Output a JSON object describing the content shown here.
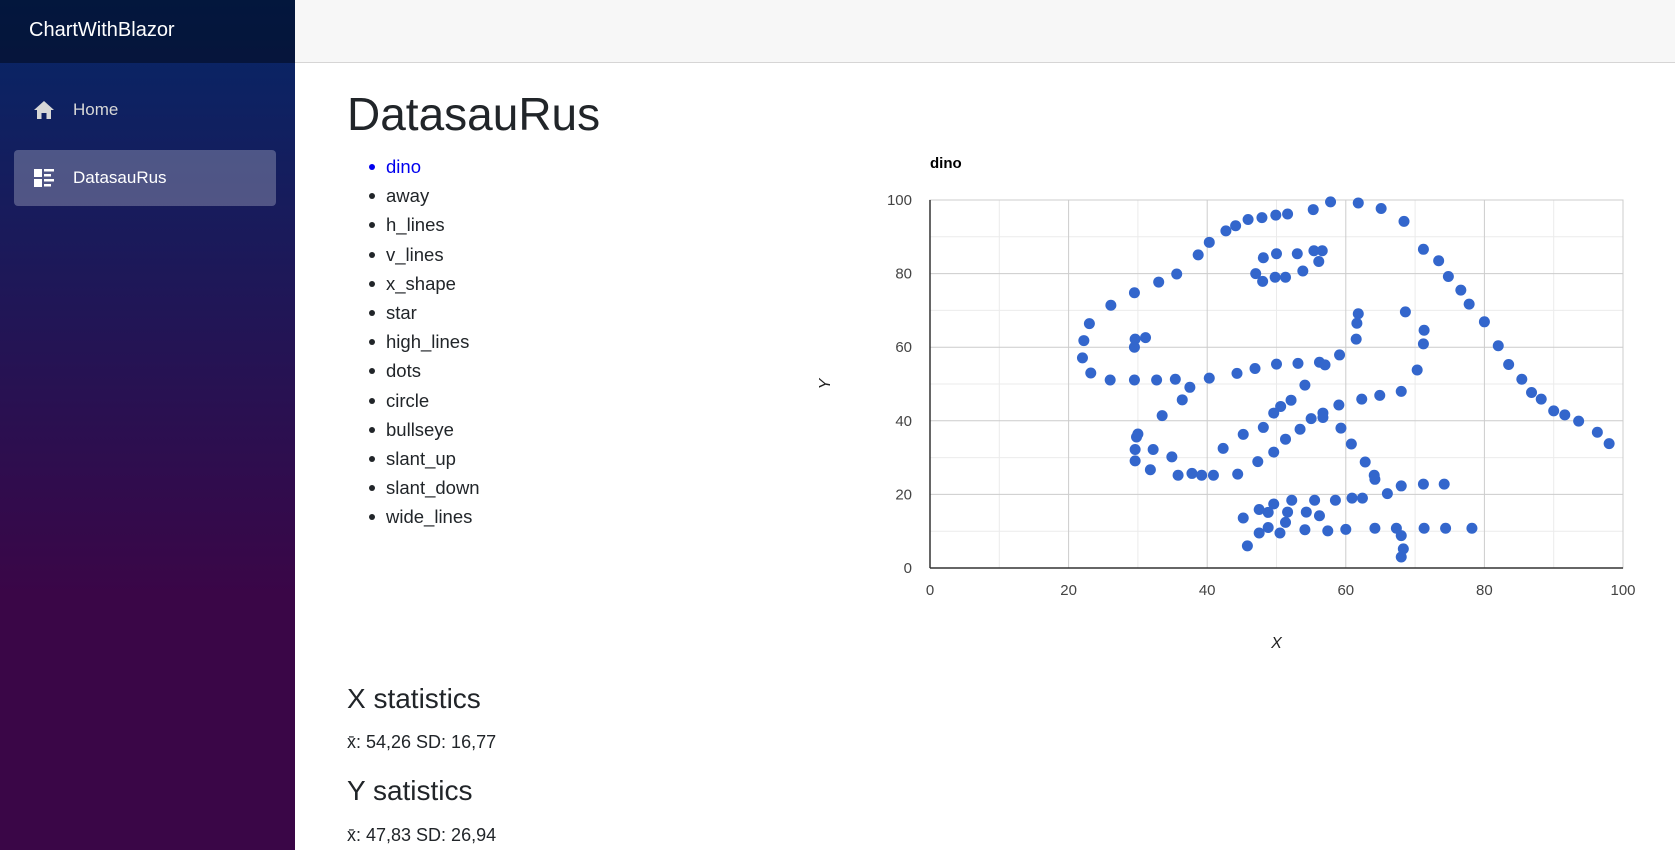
{
  "app": {
    "title": "ChartWithBlazor"
  },
  "nav": [
    {
      "label": "Home",
      "icon": "home-icon",
      "active": false
    },
    {
      "label": "DatasauRus",
      "icon": "list-rich-icon",
      "active": true
    }
  ],
  "page": {
    "title": "DatasauRus"
  },
  "datasets": [
    "dino",
    "away",
    "h_lines",
    "v_lines",
    "x_shape",
    "star",
    "high_lines",
    "dots",
    "circle",
    "bullseye",
    "slant_up",
    "slant_down",
    "wide_lines"
  ],
  "selected_dataset": "dino",
  "x_stats": {
    "heading": "X statistics",
    "text": "x̄: 54,26 SD: 16,77"
  },
  "y_stats": {
    "heading": "Y satistics",
    "text": "x̄: 47,83 SD: 26,94"
  },
  "colors": {
    "point": "#3366cc",
    "selected_link": "#0000ee"
  },
  "chart_data": {
    "type": "scatter",
    "title": "dino",
    "xlabel": "X",
    "ylabel": "Y",
    "xlim": [
      0,
      100
    ],
    "ylim": [
      0,
      100
    ],
    "xticks": [
      0,
      20,
      40,
      60,
      80,
      100
    ],
    "yticks": [
      0,
      20,
      40,
      60,
      80,
      100
    ],
    "grid": true,
    "points": [
      [
        57.8,
        99.5
      ],
      [
        61.8,
        99.2
      ],
      [
        65.1,
        97.7
      ],
      [
        55.3,
        97.4
      ],
      [
        68.4,
        94.2
      ],
      [
        51.6,
        96.2
      ],
      [
        49.9,
        95.9
      ],
      [
        47.9,
        95.2
      ],
      [
        45.9,
        94.7
      ],
      [
        44.1,
        93.0
      ],
      [
        42.7,
        91.6
      ],
      [
        40.3,
        88.5
      ],
      [
        38.7,
        85.1
      ],
      [
        33.0,
        77.7
      ],
      [
        35.6,
        79.9
      ],
      [
        29.5,
        74.8
      ],
      [
        26.1,
        71.4
      ],
      [
        23.0,
        66.4
      ],
      [
        22.2,
        61.8
      ],
      [
        22.0,
        57.1
      ],
      [
        23.2,
        53.0
      ],
      [
        26.0,
        51.1
      ],
      [
        29.5,
        51.1
      ],
      [
        32.7,
        51.1
      ],
      [
        35.4,
        51.3
      ],
      [
        40.3,
        51.6
      ],
      [
        44.3,
        52.9
      ],
      [
        46.9,
        54.2
      ],
      [
        50.0,
        55.4
      ],
      [
        53.1,
        55.6
      ],
      [
        56.2,
        55.9
      ],
      [
        57.0,
        55.2
      ],
      [
        59.1,
        57.9
      ],
      [
        61.5,
        62.2
      ],
      [
        61.6,
        66.5
      ],
      [
        61.8,
        69.1
      ],
      [
        68.6,
        69.6
      ],
      [
        71.3,
        64.6
      ],
      [
        71.2,
        60.9
      ],
      [
        70.3,
        53.8
      ],
      [
        68.0,
        48.0
      ],
      [
        64.9,
        46.9
      ],
      [
        62.3,
        45.9
      ],
      [
        59.0,
        44.3
      ],
      [
        56.7,
        42.1
      ],
      [
        56.7,
        40.9
      ],
      [
        55.0,
        40.6
      ],
      [
        53.4,
        37.7
      ],
      [
        51.3,
        35.0
      ],
      [
        49.6,
        31.5
      ],
      [
        47.3,
        28.9
      ],
      [
        45.2,
        36.3
      ],
      [
        42.3,
        32.5
      ],
      [
        44.4,
        25.5
      ],
      [
        40.9,
        25.2
      ],
      [
        39.2,
        25.2
      ],
      [
        37.8,
        25.7
      ],
      [
        35.8,
        25.2
      ],
      [
        34.9,
        30.2
      ],
      [
        32.2,
        32.2
      ],
      [
        31.8,
        26.7
      ],
      [
        29.6,
        29.1
      ],
      [
        29.6,
        32.2
      ],
      [
        30.0,
        36.4
      ],
      [
        29.8,
        35.6
      ],
      [
        33.5,
        41.4
      ],
      [
        36.4,
        45.7
      ],
      [
        37.5,
        49.1
      ],
      [
        48.1,
        38.2
      ],
      [
        49.6,
        42.1
      ],
      [
        50.6,
        43.9
      ],
      [
        52.1,
        45.6
      ],
      [
        54.1,
        49.7
      ],
      [
        59.3,
        38.0
      ],
      [
        60.8,
        33.7
      ],
      [
        62.8,
        28.8
      ],
      [
        64.1,
        25.2
      ],
      [
        64.2,
        24.1
      ],
      [
        66.0,
        20.2
      ],
      [
        68.0,
        22.3
      ],
      [
        71.2,
        22.8
      ],
      [
        74.2,
        22.8
      ],
      [
        62.4,
        19.0
      ],
      [
        60.9,
        19.0
      ],
      [
        58.5,
        18.4
      ],
      [
        55.5,
        18.4
      ],
      [
        52.2,
        18.4
      ],
      [
        49.6,
        17.4
      ],
      [
        47.5,
        15.9
      ],
      [
        48.8,
        15.1
      ],
      [
        51.6,
        15.2
      ],
      [
        54.3,
        15.2
      ],
      [
        56.2,
        14.2
      ],
      [
        51.3,
        12.4
      ],
      [
        48.8,
        11.0
      ],
      [
        50.5,
        9.5
      ],
      [
        45.8,
        6.0
      ],
      [
        47.5,
        9.5
      ],
      [
        45.2,
        13.6
      ],
      [
        54.1,
        10.4
      ],
      [
        57.4,
        10.1
      ],
      [
        60.0,
        10.5
      ],
      [
        64.2,
        10.8
      ],
      [
        67.3,
        10.8
      ],
      [
        71.3,
        10.8
      ],
      [
        74.4,
        10.8
      ],
      [
        78.2,
        10.8
      ],
      [
        68.0,
        8.8
      ],
      [
        68.3,
        5.2
      ],
      [
        68.0,
        3.0
      ],
      [
        71.2,
        86.6
      ],
      [
        73.4,
        83.5
      ],
      [
        74.8,
        79.2
      ],
      [
        76.6,
        75.5
      ],
      [
        77.8,
        71.7
      ],
      [
        80.0,
        66.9
      ],
      [
        82.0,
        60.4
      ],
      [
        83.5,
        55.3
      ],
      [
        85.4,
        51.3
      ],
      [
        86.8,
        47.7
      ],
      [
        88.2,
        45.9
      ],
      [
        90.0,
        42.7
      ],
      [
        91.6,
        41.6
      ],
      [
        93.6,
        39.9
      ],
      [
        96.3,
        36.9
      ],
      [
        98.0,
        33.8
      ],
      [
        47.0,
        80.0
      ],
      [
        48.1,
        84.3
      ],
      [
        50.0,
        85.4
      ],
      [
        53.0,
        85.4
      ],
      [
        55.4,
        86.2
      ],
      [
        56.6,
        86.2
      ],
      [
        56.1,
        83.3
      ],
      [
        53.8,
        80.7
      ],
      [
        51.3,
        79.0
      ],
      [
        49.8,
        79.0
      ],
      [
        48.0,
        77.9
      ],
      [
        29.5,
        60.0
      ],
      [
        29.6,
        62.2
      ],
      [
        31.1,
        62.6
      ]
    ]
  }
}
